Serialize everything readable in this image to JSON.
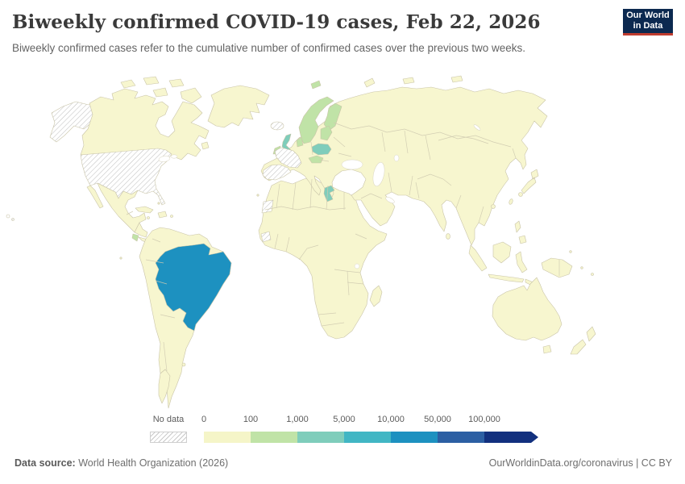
{
  "header": {
    "title": "Biweekly confirmed COVID-19 cases, Feb 22, 2026",
    "subtitle": "Biweekly confirmed cases refer to the cumulative number of confirmed cases over the previous two weeks.",
    "logo": {
      "line1": "Our World",
      "line2": "in Data",
      "bg_color": "#0c2950",
      "stripe_color": "#bf3b2e",
      "text_color": "#ffffff"
    }
  },
  "legend": {
    "no_data_label": "No data",
    "bins": [
      {
        "label": "0",
        "range": "0-100",
        "color": "#f5f5c8"
      },
      {
        "label": "100",
        "range": "100-1,000",
        "color": "#c0e3a7"
      },
      {
        "label": "1,000",
        "range": "1,000-5,000",
        "color": "#7fcdbb"
      },
      {
        "label": "5,000",
        "range": "5,000-10,000",
        "color": "#41b6c4"
      },
      {
        "label": "10,000",
        "range": "10,000-50,000",
        "color": "#1d91c0"
      },
      {
        "label": "50,000",
        "range": "50,000-100,000",
        "color": "#2c5fa3"
      },
      {
        "label": "100,000",
        "range": "100,000+",
        "color": "#12307e"
      }
    ]
  },
  "map": {
    "ocean_color": "#ffffff",
    "default_fill": "#f7f6cf",
    "border_color": "#c9c4a8",
    "lake_fill": "#ffffff",
    "hatch_line_color": "#c2c2c2",
    "regions": [
      {
        "id": "united-states",
        "bin": "no-data"
      },
      {
        "id": "alaska",
        "bin": "no-data"
      },
      {
        "id": "hawaii",
        "bin": "no-data"
      },
      {
        "id": "france",
        "bin": "no-data"
      },
      {
        "id": "spain",
        "bin": "no-data"
      },
      {
        "id": "iceland",
        "bin": "no-data"
      },
      {
        "id": "western-sahara",
        "bin": "no-data"
      },
      {
        "id": "guinea",
        "bin": "no-data"
      },
      {
        "id": "brazil",
        "bin": 4
      },
      {
        "id": "united-kingdom",
        "bin": 2
      },
      {
        "id": "poland",
        "bin": 2
      },
      {
        "id": "greece",
        "bin": 2
      },
      {
        "id": "norway-sweden",
        "bin": 1
      },
      {
        "id": "finland",
        "bin": 1
      },
      {
        "id": "svalbard",
        "bin": 1
      },
      {
        "id": "denmark",
        "bin": 1
      },
      {
        "id": "baltic-states",
        "bin": 1
      },
      {
        "id": "ireland",
        "bin": 1
      },
      {
        "id": "austria-czechia",
        "bin": 1
      },
      {
        "id": "costa-rica",
        "bin": 1
      }
    ]
  },
  "footer": {
    "source_label": "Data source:",
    "source_text": " World Health Organization (2026)",
    "right_text": "OurWorldinData.org/coronavirus | CC BY"
  },
  "chart_data": {
    "type": "choropleth",
    "title": "Biweekly confirmed COVID-19 cases, Feb 22, 2026",
    "date": "Feb 22, 2026",
    "unit": "biweekly confirmed COVID-19 cases",
    "legend_position": "bottom",
    "bins": [
      {
        "range": "0-100",
        "color": "#f5f5c8"
      },
      {
        "range": "100-1,000",
        "color": "#c0e3a7"
      },
      {
        "range": "1,000-5,000",
        "color": "#7fcdbb"
      },
      {
        "range": "5,000-10,000",
        "color": "#41b6c4"
      },
      {
        "range": "10,000-50,000",
        "color": "#1d91c0"
      },
      {
        "range": "50,000-100,000",
        "color": "#2c5fa3"
      },
      {
        "range": "100,000+",
        "color": "#12307e"
      }
    ],
    "regions_by_bin": {
      "no_data": [
        "United States",
        "France",
        "Spain",
        "Iceland",
        "Western Sahara",
        "Guinea (small hatched area, West Africa)"
      ],
      "0-100": [
        "All other countries shown (Canada, Mexico, most of South America, Africa, Asia, Oceania, etc.)"
      ],
      "100-1,000": [
        "Norway",
        "Sweden",
        "Finland",
        "Denmark",
        "Ireland",
        "Baltic states",
        "Austria/Czechia",
        "Costa Rica",
        "Svalbard"
      ],
      "1,000-5,000": [
        "United Kingdom",
        "Poland",
        "Greece"
      ],
      "10,000-50,000": [
        "Brazil"
      ]
    }
  }
}
